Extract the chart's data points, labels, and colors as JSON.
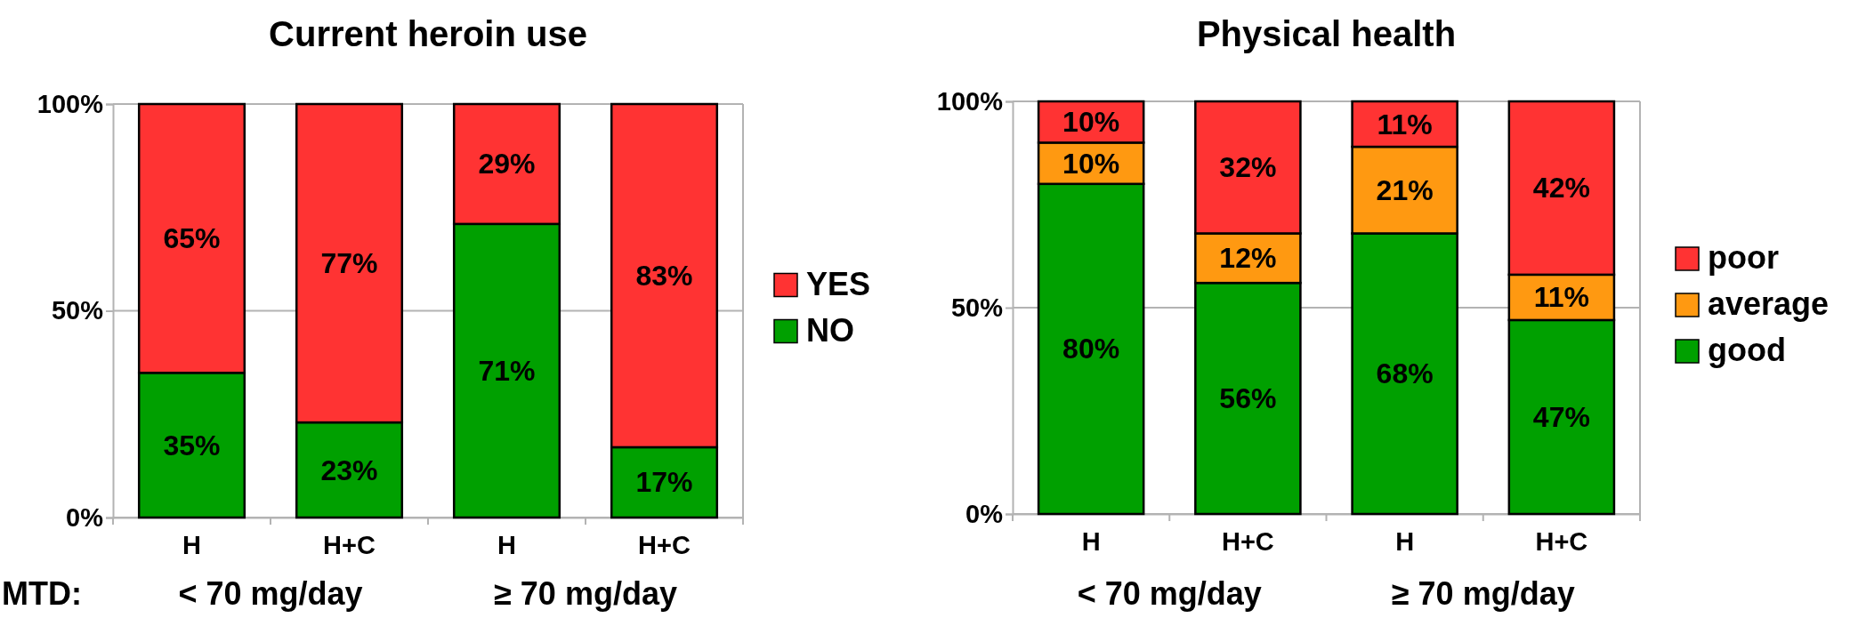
{
  "chart_data": [
    {
      "type": "bar",
      "title": "Current heroin use",
      "categories": [
        "H",
        "H+C",
        "H",
        "H+C"
      ],
      "stacked": true,
      "ylim": [
        0,
        100
      ],
      "yticks": [
        {
          "value": 0,
          "label": "0%"
        },
        {
          "value": 50,
          "label": "50%"
        },
        {
          "value": 100,
          "label": "100%"
        }
      ],
      "grid": "y",
      "legend": "right",
      "series": [
        {
          "name": "NO",
          "color": "#00a000",
          "values": [
            35,
            23,
            71,
            17
          ],
          "value_labels": [
            "35%",
            "23%",
            "71%",
            "17%"
          ]
        },
        {
          "name": "YES",
          "color": "#ff3333",
          "values": [
            65,
            77,
            29,
            83
          ],
          "value_labels": [
            "65%",
            "77%",
            "29%",
            "83%"
          ]
        }
      ],
      "annotations": [
        "MTD:",
        "< 70 mg/day",
        "≥ 70 mg/day"
      ]
    },
    {
      "type": "bar",
      "title": "Physical health",
      "categories": [
        "H",
        "H+C",
        "H",
        "H+C"
      ],
      "stacked": true,
      "ylim": [
        0,
        100
      ],
      "yticks": [
        {
          "value": 0,
          "label": "0%"
        },
        {
          "value": 50,
          "label": "50%"
        },
        {
          "value": 100,
          "label": "100%"
        }
      ],
      "grid": "y",
      "legend": "right",
      "series": [
        {
          "name": "good",
          "color": "#00a000",
          "values": [
            80,
            56,
            68,
            47
          ],
          "value_labels": [
            "80%",
            "56%",
            "68%",
            "47%"
          ]
        },
        {
          "name": "average",
          "color": "#ff9911",
          "values": [
            10,
            12,
            21,
            11
          ],
          "value_labels": [
            "10%",
            "12%",
            "21%",
            "11%"
          ]
        },
        {
          "name": "poor",
          "color": "#ff3333",
          "values": [
            10,
            32,
            11,
            42
          ],
          "value_labels": [
            "10%",
            "32%",
            "11%",
            "42%"
          ]
        }
      ],
      "annotations": [
        "< 70 mg/day",
        "≥ 70 mg/day"
      ]
    }
  ]
}
